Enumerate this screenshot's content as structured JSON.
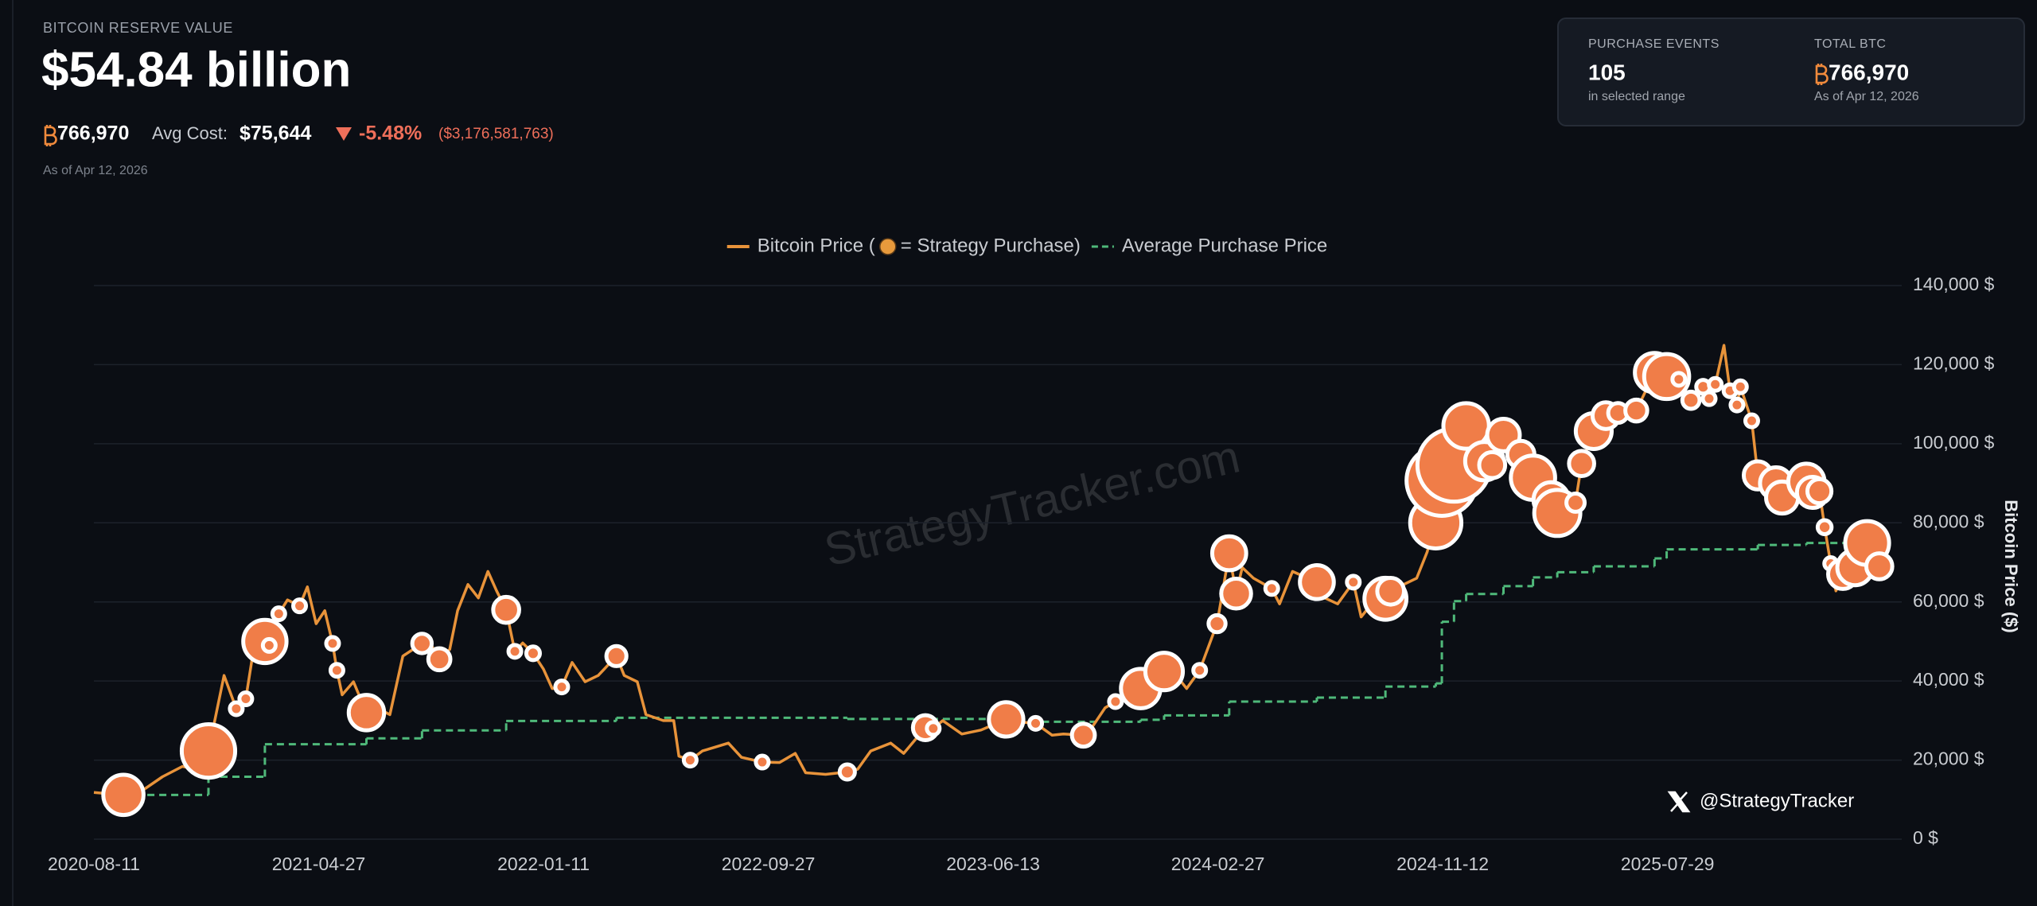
{
  "header": {
    "eyebrow": "BITCOIN RESERVE VALUE",
    "value": "$54.84 billion",
    "btc": "766,970",
    "avg_cost_label": "Avg Cost:",
    "avg_cost": "$75,644",
    "change_pct": "-5.48%",
    "change_usd": "($3,176,581,763)",
    "as_of": "As of Apr 12, 2026"
  },
  "stats": [
    {
      "label": "PURCHASE EVENTS",
      "value": "105",
      "note": "in selected range"
    },
    {
      "label": "TOTAL BTC",
      "value": "766,970",
      "note": "As of Apr 12, 2026"
    }
  ],
  "chart_data": {
    "type": "line",
    "y_label": "Bitcoin Price ($)",
    "watermark": "StrategyTracker.com",
    "credit": "@StrategyTracker",
    "legend": "top",
    "grid": true,
    "xlim": [
      "2020-08-11",
      "2026-04-12"
    ],
    "xticks": [
      "2020-08-11",
      "2021-04-27",
      "2022-01-11",
      "2022-09-27",
      "2023-06-13",
      "2024-02-27",
      "2024-11-12",
      "2025-07-29"
    ],
    "ylim": [
      0,
      140000
    ],
    "yticks": [
      {
        "value": 0,
        "label": "0 $"
      },
      {
        "value": 20000,
        "label": "20,000 $"
      },
      {
        "value": 40000,
        "label": "40,000 $"
      },
      {
        "value": 60000,
        "label": "60,000 $"
      },
      {
        "value": 80000,
        "label": "80,000 $"
      },
      {
        "value": 100000,
        "label": "100,000 $"
      },
      {
        "value": 120000,
        "label": "120,000 $"
      },
      {
        "value": 140000,
        "label": "140,000 $"
      }
    ],
    "series": [
      {
        "name": "Bitcoin Price (",
        "type": "line",
        "color": "#e8933a",
        "x": [
          "2020-08-11",
          "2020-09-14",
          "2020-10-07",
          "2020-10-29",
          "2020-11-21",
          "2020-12-06",
          "2020-12-21",
          "2021-01-08",
          "2021-01-22",
          "2021-02-02",
          "2021-02-11",
          "2021-02-24",
          "2021-03-01",
          "2021-03-12",
          "2021-03-22",
          "2021-04-05",
          "2021-04-14",
          "2021-04-24",
          "2021-05-04",
          "2021-05-13",
          "2021-05-18",
          "2021-05-24",
          "2021-06-06",
          "2021-06-21",
          "2021-07-03",
          "2021-07-18",
          "2021-08-02",
          "2021-08-24",
          "2021-08-29",
          "2021-09-13",
          "2021-09-25",
          "2021-10-04",
          "2021-10-16",
          "2021-10-28",
          "2021-11-08",
          "2021-11-18",
          "2021-11-29",
          "2021-12-09",
          "2021-12-18",
          "2021-12-30",
          "2022-01-11",
          "2022-01-21",
          "2022-02-01",
          "2022-02-13",
          "2022-02-28",
          "2022-03-15",
          "2022-04-05",
          "2022-04-14",
          "2022-04-29",
          "2022-05-09",
          "2022-05-29",
          "2022-06-10",
          "2022-06-16",
          "2022-06-29",
          "2022-07-13",
          "2022-07-28",
          "2022-08-12",
          "2022-08-27",
          "2022-09-20",
          "2022-10-10",
          "2022-10-28",
          "2022-11-09",
          "2022-12-02",
          "2022-12-27",
          "2023-01-08",
          "2023-01-23",
          "2023-02-15",
          "2023-03-02",
          "2023-03-27",
          "2023-04-05",
          "2023-04-16",
          "2023-05-08",
          "2023-05-30",
          "2023-06-28",
          "2023-07-14",
          "2023-08-01",
          "2023-08-20",
          "2023-09-02",
          "2023-09-25",
          "2023-10-05",
          "2023-10-20",
          "2023-11-01",
          "2023-11-30",
          "2023-12-10",
          "2023-12-27",
          "2024-01-10",
          "2024-01-22",
          "2024-02-06",
          "2024-02-26",
          "2024-03-11",
          "2024-03-19",
          "2024-03-26",
          "2024-04-08",
          "2024-04-29",
          "2024-05-08",
          "2024-05-23",
          "2024-06-20",
          "2024-06-29",
          "2024-07-14",
          "2024-08-01",
          "2024-08-10",
          "2024-08-22",
          "2024-09-07",
          "2024-09-13",
          "2024-09-28",
          "2024-10-13",
          "2024-10-25",
          "2024-11-04",
          "2024-11-11",
          "2024-11-25",
          "2024-12-09",
          "2024-12-30",
          "2025-01-08",
          "2025-01-21",
          "2025-02-10",
          "2025-02-24",
          "2025-03-04",
          "2025-03-17",
          "2025-03-24",
          "2025-04-14",
          "2025-04-21",
          "2025-05-05",
          "2025-05-19",
          "2025-06-02",
          "2025-06-23",
          "2025-07-14",
          "2025-07-28",
          "2025-08-11",
          "2025-08-25",
          "2025-09-08",
          "2025-09-15",
          "2025-09-22",
          "2025-10-02",
          "2025-10-09",
          "2025-10-17",
          "2025-10-21",
          "2025-11-03",
          "2025-11-10",
          "2025-11-20",
          "2025-12-01",
          "2025-12-08",
          "2025-12-29",
          "2026-01-05",
          "2026-01-12",
          "2026-01-20",
          "2026-01-26",
          "2026-02-02",
          "2026-02-08",
          "2026-02-16",
          "2026-03-02",
          "2026-03-16",
          "2026-03-30",
          "2026-04-12"
        ],
        "values": [
          11800,
          11200,
          12500,
          15800,
          18400,
          17700,
          22300,
          41400,
          33000,
          35500,
          48000,
          50000,
          49000,
          57000,
          60500,
          59000,
          63800,
          54500,
          57800,
          49500,
          42700,
          36500,
          39800,
          32000,
          33200,
          31500,
          46300,
          49500,
          51300,
          45500,
          48000,
          57800,
          64400,
          61000,
          67700,
          62800,
          58000,
          47500,
          49600,
          47000,
          43000,
          38100,
          38500,
          44700,
          39800,
          41400,
          46300,
          41400,
          39800,
          31500,
          30000,
          30000,
          21000,
          20000,
          22300,
          23300,
          24300,
          20700,
          19500,
          19400,
          21700,
          16800,
          16400,
          17000,
          17700,
          22300,
          24300,
          21700,
          28200,
          28000,
          30000,
          26600,
          27600,
          30300,
          29600,
          29300,
          26300,
          26600,
          26300,
          28300,
          33200,
          34800,
          38100,
          39800,
          42400,
          41400,
          38100,
          42700,
          54500,
          72300,
          62100,
          68700,
          66000,
          63400,
          59500,
          67700,
          65000,
          61000,
          59500,
          65000,
          56200,
          59500,
          60800,
          62700,
          64400,
          66000,
          72600,
          80000,
          90700,
          94600,
          104500,
          95600,
          94600,
          102200,
          97300,
          91400,
          89000,
          85800,
          82500,
          85100,
          95000,
          103200,
          107100,
          107800,
          108400,
          118000,
          117000,
          116300,
          111000,
          114400,
          111400,
          115000,
          124900,
          113400,
          109800,
          114400,
          105800,
          92000,
          94000,
          90000,
          86400,
          90700,
          90400,
          87700,
          88000,
          78900,
          69700,
          62800,
          67000,
          68700,
          74900,
          69000,
          67700
        ]
      },
      {
        "name": "= Strategy Purchase)",
        "type": "scatter",
        "color": "#f07d48",
        "x": [
          "2020-09-14",
          "2020-12-21",
          "2021-01-22",
          "2021-02-02",
          "2021-02-24",
          "2021-03-01",
          "2021-03-12",
          "2021-04-05",
          "2021-05-13",
          "2021-05-18",
          "2021-06-21",
          "2021-08-24",
          "2021-09-13",
          "2021-11-29",
          "2021-12-09",
          "2021-12-30",
          "2022-02-01",
          "2022-04-05",
          "2022-06-29",
          "2022-09-20",
          "2022-12-27",
          "2023-03-27",
          "2023-04-05",
          "2023-06-28",
          "2023-08-01",
          "2023-09-25",
          "2023-11-01",
          "2023-11-30",
          "2023-12-27",
          "2024-02-06",
          "2024-02-26",
          "2024-03-11",
          "2024-03-19",
          "2024-04-29",
          "2024-06-20",
          "2024-08-01",
          "2024-09-07",
          "2024-09-13",
          "2024-11-04",
          "2024-11-11",
          "2024-11-25",
          "2024-12-09",
          "2024-12-30",
          "2025-01-08",
          "2025-01-21",
          "2025-02-10",
          "2025-02-24",
          "2025-03-17",
          "2025-03-24",
          "2025-04-14",
          "2025-04-21",
          "2025-05-05",
          "2025-05-19",
          "2025-06-02",
          "2025-06-23",
          "2025-07-14",
          "2025-07-28",
          "2025-08-11",
          "2025-08-25",
          "2025-09-08",
          "2025-09-15",
          "2025-09-22",
          "2025-10-09",
          "2025-10-17",
          "2025-10-21",
          "2025-11-03",
          "2025-11-10",
          "2025-12-01",
          "2025-12-08",
          "2026-01-05",
          "2026-01-12",
          "2026-01-20",
          "2026-01-26",
          "2026-02-02",
          "2026-02-16",
          "2026-03-02",
          "2026-03-16",
          "2026-03-30"
        ],
        "values": [
          11200,
          22300,
          33000,
          35500,
          50000,
          49000,
          57000,
          59000,
          49500,
          42700,
          32000,
          49500,
          45500,
          58000,
          47500,
          47000,
          38500,
          46300,
          20000,
          19500,
          17000,
          28200,
          28000,
          30300,
          29300,
          26300,
          34800,
          38100,
          42400,
          42700,
          54500,
          72300,
          62100,
          63400,
          65000,
          65000,
          60800,
          62700,
          80000,
          90700,
          94600,
          104500,
          95600,
          94600,
          102200,
          97300,
          91400,
          85800,
          82500,
          85100,
          95000,
          103200,
          107100,
          107800,
          108400,
          118000,
          117000,
          116300,
          111000,
          114400,
          111400,
          115000,
          113400,
          109800,
          114400,
          105800,
          92000,
          90000,
          86400,
          90400,
          87700,
          88000,
          78900,
          69700,
          67000,
          68700,
          74900,
          69000
        ],
        "sizes": [
          16796,
          29646,
          314,
          295,
          19452,
          328,
          262,
          253,
          271,
          229,
          13005,
          3907,
          5050,
          7002,
          1434,
          1914,
          660,
          4167,
          480,
          301,
          2395,
          6455,
          1045,
          12333,
          467,
          5445,
          155,
          16130,
          14620,
          850,
          3000,
          12000,
          9245,
          122,
          11931,
          169,
          18300,
          7420,
          27200,
          51780,
          55500,
          21550,
          15350,
          7000,
          11000,
          7633,
          20356,
          13000,
          22048,
          3459,
          6556,
          13390,
          7390,
          4020,
          4980,
          16000,
          21021,
          155,
          3081,
          1955,
          1000,
          300,
          220,
          390,
          168,
          397,
          8178,
          10624,
          10645,
          13627,
          10000,
          6000,
          2000,
          1500,
          9000,
          13000,
          20000,
          7000
        ]
      },
      {
        "name": "Average Purchase Price",
        "type": "step",
        "color": "#4fb97a",
        "dashed": true,
        "x": [
          "2020-09-14",
          "2020-12-21",
          "2021-02-24",
          "2021-06-21",
          "2021-08-24",
          "2021-11-29",
          "2022-04-05",
          "2022-12-27",
          "2023-06-28",
          "2023-11-30",
          "2023-12-27",
          "2024-03-11",
          "2024-06-20",
          "2024-09-07",
          "2024-11-04",
          "2024-11-11",
          "2024-11-25",
          "2024-12-09",
          "2025-01-21",
          "2025-02-24",
          "2025-03-24",
          "2025-05-05",
          "2025-07-14",
          "2025-07-28",
          "2025-11-10",
          "2026-01-05",
          "2026-03-16"
        ],
        "values": [
          11200,
          15800,
          24000,
          25500,
          27500,
          29900,
          30700,
          30400,
          29700,
          30200,
          31300,
          34800,
          35800,
          38600,
          39400,
          55000,
          60200,
          62000,
          64000,
          66200,
          67500,
          69000,
          71000,
          73300,
          74400,
          74900,
          75644
        ]
      }
    ]
  }
}
